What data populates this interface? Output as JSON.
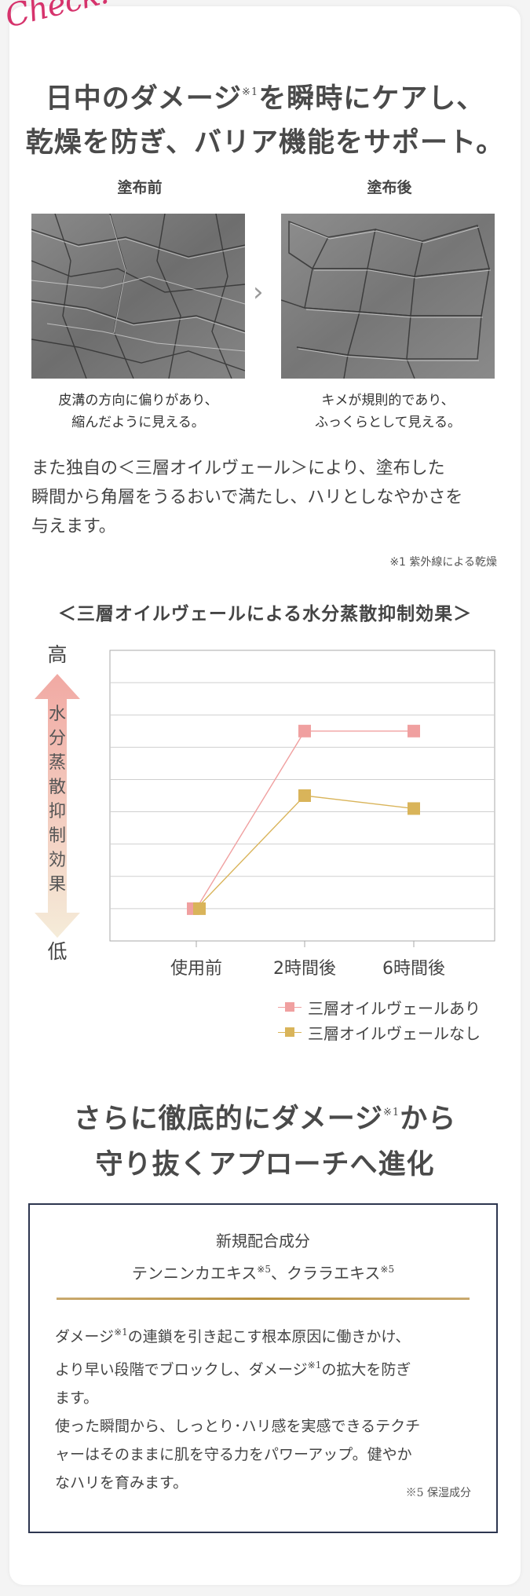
{
  "badge": "Check!",
  "headline": {
    "line1_a": "日中のダメージ",
    "note": "※1",
    "line1_b": "を瞬時にケアし、",
    "line2": "乾燥を防ぎ、バリア機能をサポート。"
  },
  "comparison": {
    "before_label": "塗布前",
    "after_label": "塗布後",
    "arrow": "›",
    "before_caption_1": "皮溝の方向に偏りがあり、",
    "before_caption_2": "縮んだように見える。",
    "after_caption_1": "キメが規則的であり、",
    "after_caption_2": "ふっくらとして見える。"
  },
  "body": {
    "line1": "また独自の＜三層オイルヴェール＞により、塗布した",
    "line2": "瞬間から角層をうるおいで満たし、ハリとしなやかさを",
    "line3": "与えます。",
    "footnote": "※1 紫外線による乾燥"
  },
  "chart_data": {
    "type": "line",
    "title": "＜三層オイルヴェールによる水分蒸散抑制効果＞",
    "categories": [
      "使用前",
      "2時間後",
      "6時間後"
    ],
    "ylabel": "水分蒸散抑制効果",
    "y_high_label": "高",
    "y_low_label": "低",
    "grid": true,
    "ylim": [
      0,
      9
    ],
    "series": [
      {
        "name": "三層オイルヴェールあり",
        "values": [
          1,
          6.5,
          6.5
        ],
        "color": "#f0a0a0"
      },
      {
        "name": "三層オイルヴェールなし",
        "values": [
          1,
          4.5,
          4.1
        ],
        "color": "#d9b45a"
      }
    ],
    "legend_position": "bottom-right"
  },
  "section2": {
    "title_line1_a": "さらに徹底的にダメージ",
    "title_note": "※1",
    "title_line1_b": "から",
    "title_line2": "守り抜くアプローチへ進化",
    "box": {
      "heading1": "新規配合成分",
      "heading2_a": "テンニンカエキス",
      "heading2_n1": "※5",
      "heading2_b": "、クララエキス",
      "heading2_n2": "※5",
      "p1_a": "ダメージ",
      "p1_n1": "※1",
      "p1_b": "の連鎖を引き起こす根本原因に働きかけ、",
      "p1_c": "より早い段階でブロックし、ダメージ",
      "p1_n2": "※1",
      "p1_d": "の拡大を防ぎ",
      "p1_e": "ます。",
      "p2_a": "使った瞬間から、しっとり･ハリ感を実感できるテクチ",
      "p2_b": "ャーはそのままに肌を守る力をパワーアップ。健やか",
      "p2_c": "なハリを育みます。",
      "note": "※5 保湿成分"
    }
  },
  "colors": {
    "accent_pink": "#d6336c",
    "navy_border": "#2d3650",
    "gold_line": "#b8913f"
  }
}
